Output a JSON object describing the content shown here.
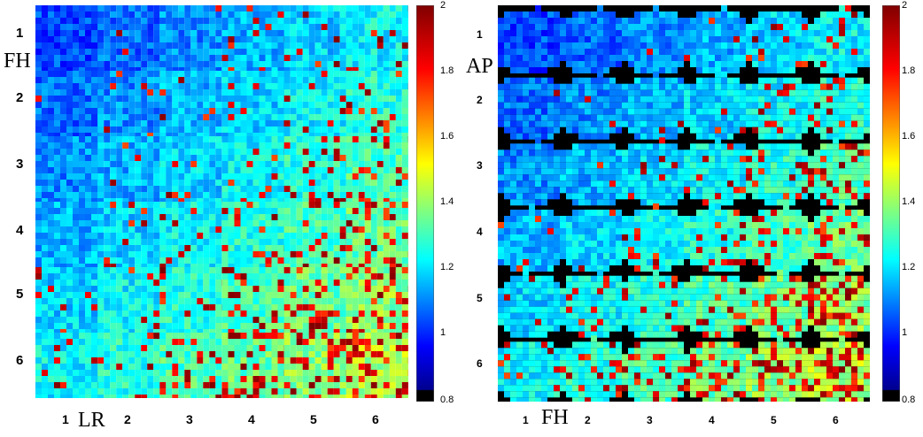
{
  "figure": {
    "left_panel": {
      "row_labels": [
        "1",
        "2",
        "3",
        "4",
        "5",
        "6"
      ],
      "col_labels": [
        "1",
        "2",
        "3",
        "4",
        "5",
        "6"
      ],
      "row_axis": "FH",
      "col_axis": "LR"
    },
    "right_panel": {
      "row_labels": [
        "1",
        "2",
        "3",
        "4",
        "5",
        "6"
      ],
      "col_labels": [
        "1",
        "2",
        "3",
        "4",
        "5",
        "6"
      ],
      "row_axis": "AP",
      "col_axis": "FH"
    },
    "colorbar": {
      "ticks_left": [
        "2",
        "1.8",
        "1.6",
        "1.4",
        "1.2",
        "1",
        "0.8"
      ],
      "ticks_right": [
        "2",
        "1.8",
        "1.6",
        "1.4",
        "1.2",
        "1",
        "0.8"
      ],
      "min": 0.8,
      "max": 2.0
    }
  }
}
